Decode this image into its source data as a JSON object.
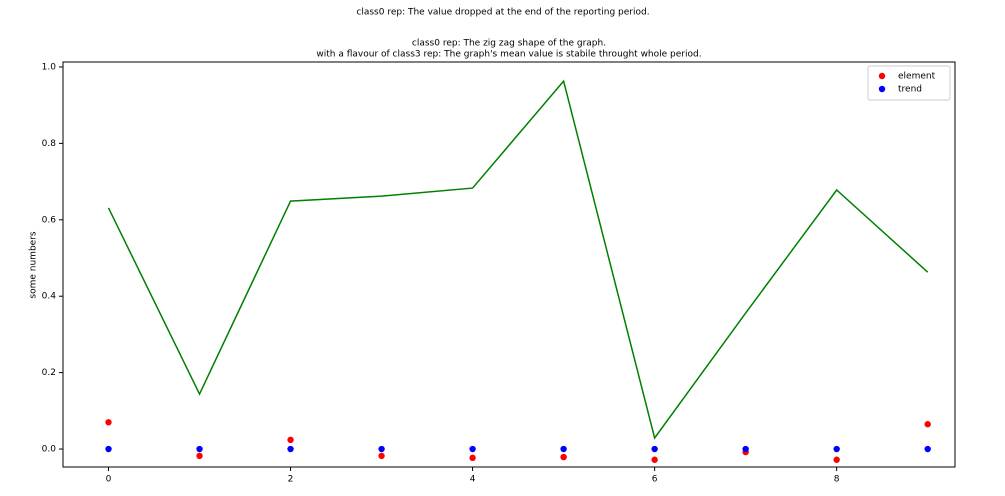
{
  "chart_data": {
    "type": "line",
    "suptitle": "class0 rep: The value dropped at the end of the reporting period.",
    "title": [
      "class0 rep: The zig zag shape of the graph.",
      "with a flavour of class3 rep: The graph's mean value is stabile throught whole period."
    ],
    "ylabel": "some numbers",
    "x": [
      0,
      1,
      2,
      3,
      4,
      5,
      6,
      7,
      8,
      9
    ],
    "series": [
      {
        "color": "#008000",
        "style": "line",
        "values": [
          0.631,
          0.144,
          0.649,
          0.662,
          0.683,
          0.963,
          0.029,
          0.356,
          0.678,
          0.463
        ]
      },
      {
        "name": "element",
        "color": "#ff0000",
        "style": "markers",
        "values": [
          0.07,
          -0.018,
          0.024,
          -0.018,
          -0.023,
          -0.021,
          -0.028,
          -0.008,
          -0.028,
          0.065
        ]
      },
      {
        "name": "trend",
        "color": "#0000ff",
        "style": "markers",
        "values": [
          0,
          0,
          0,
          0,
          0,
          0,
          0,
          0,
          0,
          0
        ]
      }
    ],
    "xlim": [
      -0.5,
      9.3
    ],
    "ylim": [
      -0.047,
      1.013
    ],
    "xticks": [
      0,
      2,
      4,
      6,
      8
    ],
    "yticks": [
      {
        "value": 0,
        "label": "0.0"
      },
      0.2,
      0.4,
      0.6,
      0.8,
      {
        "value": 1,
        "label": "1.0"
      }
    ],
    "legend": "upper right"
  }
}
